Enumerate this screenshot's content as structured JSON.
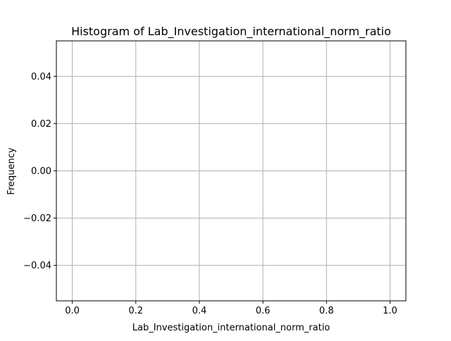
{
  "chart_data": {
    "type": "bar",
    "title": "Histogram of Lab_Investigation_international_norm_ratio",
    "xlabel": "Lab_Investigation_international_norm_ratio",
    "ylabel": "Frequency",
    "xlim": [
      -0.05,
      1.05
    ],
    "ylim": [
      -0.055,
      0.055
    ],
    "xticks": [
      0.0,
      0.2,
      0.4,
      0.6,
      0.8,
      1.0
    ],
    "xtick_labels": [
      "0.0",
      "0.2",
      "0.4",
      "0.6",
      "0.8",
      "1.0"
    ],
    "yticks": [
      0.04,
      0.02,
      0.0,
      -0.02,
      -0.04
    ],
    "ytick_labels": [
      "0.04",
      "0.02",
      "0.00",
      "−0.02",
      "−0.04"
    ],
    "bins": [],
    "grid": true,
    "grid_color": "#b0b0b0",
    "bar_color": "#1f77b4"
  }
}
